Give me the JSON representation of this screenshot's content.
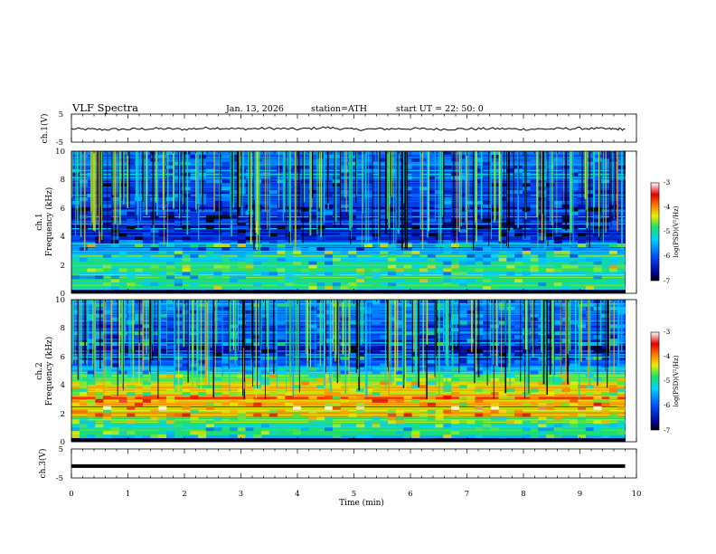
{
  "header": {
    "title": "VLF  Spectra",
    "date": "Jan. 13, 2026",
    "station": "station=ATH",
    "start_time": "start  UT  =   22: 50: 0"
  },
  "chart_data": [
    {
      "type": "line",
      "panel": "ch1-waveform",
      "title": "VLF  Spectra",
      "ylabel": "ch.1(V)",
      "xlabel": "",
      "xlim": [
        0,
        10
      ],
      "ylim": [
        -5,
        5
      ],
      "yticks": [
        "5",
        "-5"
      ],
      "x": [
        0.0,
        0.5,
        1.0,
        1.5,
        2.0,
        2.5,
        3.0,
        3.5,
        4.0,
        4.5,
        5.0,
        5.5,
        6.0,
        6.5,
        7.0,
        7.5,
        8.0,
        8.5,
        9.0,
        9.5,
        9.8
      ],
      "y": [
        -0.3,
        -0.5,
        -0.4,
        -0.2,
        -0.4,
        0.1,
        -0.3,
        -0.1,
        -0.4,
        0.2,
        -0.5,
        -0.3,
        -0.2,
        -0.4,
        -0.3,
        -0.2,
        -0.4,
        -0.3,
        -0.1,
        -0.3,
        -0.4
      ]
    },
    {
      "type": "heatmap",
      "panel": "ch1-spectrogram",
      "ylabel_channel": "ch.1",
      "ylabel": "Frequency  (kHz)",
      "xlim": [
        0,
        9.8
      ],
      "ylim": [
        0,
        10
      ],
      "yticks": [
        "0",
        "2",
        "4",
        "6",
        "8",
        "10"
      ],
      "colorbar_label": "log(PSD)(V²/Hz)",
      "colorbar_range": [
        -7,
        -3
      ],
      "colorbar_ticks": [
        "-3",
        "-4",
        "-5",
        "-6",
        "-7"
      ],
      "band_profile_khz": [
        0.0,
        0.5,
        1.0,
        2.0,
        2.5,
        4.0,
        5.0,
        6.5,
        8.0,
        10.0
      ],
      "band_profile_logpsd": [
        -7.0,
        -4.8,
        -5.2,
        -5.0,
        -5.3,
        -6.2,
        -6.4,
        -6.3,
        -6.1,
        -5.8
      ]
    },
    {
      "type": "heatmap",
      "panel": "ch2-spectrogram",
      "ylabel_channel": "ch.2",
      "ylabel": "Frequency  (kHz)",
      "xlim": [
        0,
        9.8
      ],
      "ylim": [
        0,
        10
      ],
      "yticks": [
        "0",
        "2",
        "4",
        "6",
        "8",
        "10"
      ],
      "colorbar_label": "log(PSD)(V²/Hz)",
      "colorbar_range": [
        -7,
        -3
      ],
      "colorbar_ticks": [
        "-3",
        "-4",
        "-5",
        "-6",
        "-7"
      ],
      "band_profile_khz": [
        0.0,
        0.5,
        1.0,
        2.0,
        3.5,
        4.5,
        5.0,
        6.0,
        8.0,
        10.0
      ],
      "band_profile_logpsd": [
        -7.0,
        -4.9,
        -5.1,
        -4.3,
        -4.2,
        -4.6,
        -5.4,
        -6.4,
        -6.0,
        -5.8
      ]
    },
    {
      "type": "line",
      "panel": "ch3-waveform",
      "ylabel": "ch.3(V)",
      "xlabel": "Time  (min)",
      "xlim": [
        0,
        10
      ],
      "ylim": [
        -5,
        5
      ],
      "yticks": [
        "5",
        "-5"
      ],
      "xticks": [
        "0",
        "1",
        "2",
        "3",
        "4",
        "5",
        "6",
        "7",
        "8",
        "9",
        "10"
      ],
      "x": [
        0.0,
        9.8
      ],
      "y": [
        -0.9,
        -0.9
      ]
    }
  ]
}
